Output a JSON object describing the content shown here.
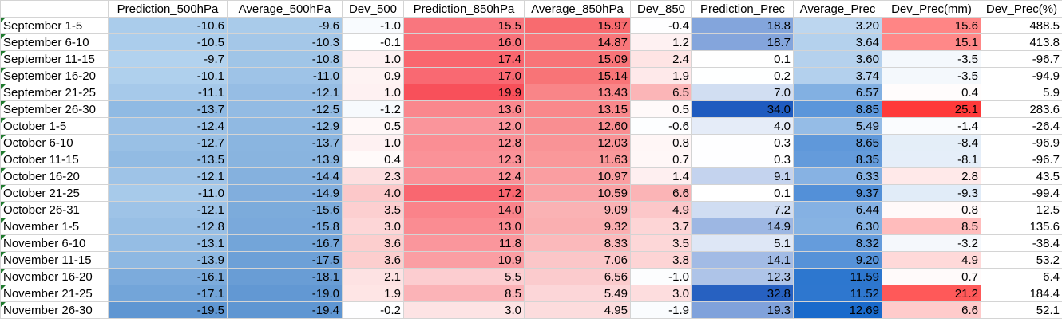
{
  "table": {
    "headers": [
      "",
      "Prediction_500hPa",
      "Average_500hPa",
      "Dev_500",
      "Prediction_850hPa",
      "Average_850hPa",
      "Dev_850",
      "Prediction_Prec",
      "Average_Prec",
      "Dev_Prec(mm)",
      "Dev_Prec(%)"
    ],
    "rows": [
      [
        "September 1-5",
        "-10.6",
        "-9.6",
        "-1.0",
        "15.5",
        "15.97",
        "-0.4",
        "18.8",
        "3.20",
        "15.6",
        "488.5"
      ],
      [
        "September 6-10",
        "-10.5",
        "-10.3",
        "-0.1",
        "16.0",
        "14.87",
        "1.2",
        "18.7",
        "3.64",
        "15.1",
        "413.8"
      ],
      [
        "September 11-15",
        "-9.7",
        "-10.8",
        "1.0",
        "17.4",
        "15.09",
        "2.4",
        "0.1",
        "3.60",
        "-3.5",
        "-96.7"
      ],
      [
        "September 16-20",
        "-10.1",
        "-11.0",
        "0.9",
        "17.0",
        "15.14",
        "1.9",
        "0.2",
        "3.74",
        "-3.5",
        "-94.9"
      ],
      [
        "September 21-25",
        "-11.1",
        "-12.1",
        "1.0",
        "19.9",
        "13.43",
        "6.5",
        "7.0",
        "6.57",
        "0.4",
        "5.9"
      ],
      [
        "September 26-30",
        "-13.7",
        "-12.5",
        "-1.2",
        "13.6",
        "13.15",
        "0.5",
        "34.0",
        "8.85",
        "25.1",
        "283.6"
      ],
      [
        "October 1-5",
        "-12.4",
        "-12.9",
        "0.5",
        "12.0",
        "12.60",
        "-0.6",
        "4.0",
        "5.49",
        "-1.4",
        "-26.4"
      ],
      [
        "October 6-10",
        "-12.7",
        "-13.7",
        "1.0",
        "12.8",
        "12.03",
        "0.8",
        "0.3",
        "8.65",
        "-8.4",
        "-96.9"
      ],
      [
        "October 11-15",
        "-13.5",
        "-13.9",
        "0.4",
        "12.3",
        "11.63",
        "0.7",
        "0.3",
        "8.35",
        "-8.1",
        "-96.7"
      ],
      [
        "October 16-20",
        "-12.1",
        "-14.4",
        "2.3",
        "12.4",
        "10.97",
        "1.4",
        "9.1",
        "6.33",
        "2.8",
        "43.5"
      ],
      [
        "October 21-25",
        "-11.0",
        "-14.9",
        "4.0",
        "17.2",
        "10.59",
        "6.6",
        "0.1",
        "9.37",
        "-9.3",
        "-99.4"
      ],
      [
        "October 26-31",
        "-12.1",
        "-15.6",
        "3.5",
        "14.0",
        "9.09",
        "4.9",
        "7.2",
        "6.44",
        "0.8",
        "12.5"
      ],
      [
        "November 1-5",
        "-12.8",
        "-15.8",
        "3.0",
        "13.0",
        "9.32",
        "3.7",
        "14.9",
        "6.30",
        "8.5",
        "135.6"
      ],
      [
        "November 6-10",
        "-13.1",
        "-16.7",
        "3.6",
        "11.8",
        "8.33",
        "3.5",
        "5.1",
        "8.32",
        "-3.2",
        "-38.4"
      ],
      [
        "November 11-15",
        "-13.9",
        "-17.5",
        "3.6",
        "10.9",
        "7.06",
        "3.8",
        "14.1",
        "9.20",
        "4.9",
        "53.2"
      ],
      [
        "November 16-20",
        "-16.1",
        "-18.1",
        "2.1",
        "5.5",
        "6.56",
        "-1.0",
        "12.3",
        "11.59",
        "0.7",
        "6.4"
      ],
      [
        "November 21-25",
        "-17.1",
        "-19.0",
        "1.9",
        "8.5",
        "5.49",
        "3.0",
        "32.8",
        "11.52",
        "21.2",
        "184.4"
      ],
      [
        "November 26-30",
        "-19.5",
        "-19.4",
        "-0.2",
        "3.0",
        "4.95",
        "-1.9",
        "19.3",
        "12.69",
        "6.6",
        "52.1"
      ]
    ],
    "color_scales": [
      {
        "column": 1,
        "kind": "sequential",
        "low_color": "#5f96d2",
        "high_color": "#b2d2ee"
      },
      {
        "column": 2,
        "kind": "sequential",
        "low_color": "#5f96d2",
        "high_color": "#a9cbea"
      },
      {
        "column": 3,
        "kind": "diverging",
        "neg_color": "#e3eef9",
        "pos_color": "#fcc8c9"
      },
      {
        "column": 4,
        "kind": "sequential",
        "low_color": "#fde3e4",
        "high_color": "#f8505a"
      },
      {
        "column": 5,
        "kind": "sequential",
        "low_color": "#fcdcdd",
        "high_color": "#f86b6f"
      },
      {
        "column": 6,
        "kind": "diverging",
        "neg_color": "#eef4fb",
        "pos_color": "#fbb4b6"
      },
      {
        "column": 7,
        "kind": "sequential",
        "low_color": "#ffffff",
        "high_color": "#1f5bbf"
      },
      {
        "column": 8,
        "kind": "sequential",
        "low_color": "#bcd6ef",
        "high_color": "#1a6acb"
      },
      {
        "column": 9,
        "kind": "diverging",
        "neg_color": "#adcbeb",
        "pos_color": "#ff3a3a"
      }
    ]
  }
}
